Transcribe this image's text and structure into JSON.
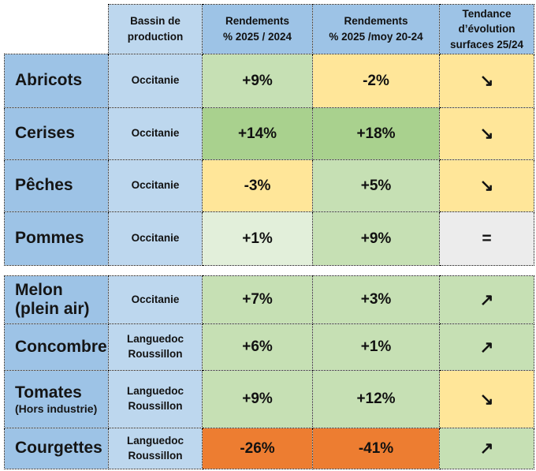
{
  "palette": {
    "col1_blue": "#9DC3E6",
    "col2_blue": "#BDD7EE",
    "header_blue": "#9DC3E6",
    "header_blue_light": "#BDD7EE",
    "green_pale": "#E2EFDA",
    "green_light": "#C6E0B4",
    "green_medium": "#A9D18E",
    "yellow": "#FFE699",
    "orange": "#ED7D31",
    "gray": "#ECECEC",
    "border": "#000000"
  },
  "header": {
    "labels": [
      "Bassin de\nproduction",
      "Rendements\n% 2025 / 2024",
      "Rendements\n% 2025 /moy 20-24",
      "Tendance\nd’évolution\nsurfaces 25/24"
    ]
  },
  "rows": [
    {
      "group": "fruits",
      "name": "Abricots",
      "sub": "",
      "bassin": "Occitanie",
      "y24": "+9%",
      "y24_bg": "green_light",
      "avg": "-2%",
      "avg_bg": "yellow",
      "trend": "↘︎",
      "trend_bg": "yellow"
    },
    {
      "group": "fruits",
      "name": "Cerises",
      "sub": "",
      "bassin": "Occitanie",
      "y24": "+14%",
      "y24_bg": "green_medium",
      "avg": "+18%",
      "avg_bg": "green_medium",
      "trend": "↘︎",
      "trend_bg": "yellow"
    },
    {
      "group": "fruits",
      "name": "Pêches",
      "sub": "",
      "bassin": "Occitanie",
      "y24": "-3%",
      "y24_bg": "yellow",
      "avg": "+5%",
      "avg_bg": "green_light",
      "trend": "↘︎",
      "trend_bg": "yellow"
    },
    {
      "group": "fruits",
      "name": "Pommes",
      "sub": "",
      "bassin": "Occitanie",
      "y24": "+1%",
      "y24_bg": "green_pale",
      "avg": "+9%",
      "avg_bg": "green_light",
      "trend": "=",
      "trend_bg": "gray"
    },
    {
      "group": "legumes",
      "name": "Melon\n(plein air)",
      "sub": "",
      "bassin": "Occitanie",
      "y24": "+7%",
      "y24_bg": "green_light",
      "avg": "+3%",
      "avg_bg": "green_light",
      "trend": "↗︎",
      "trend_bg": "green_light"
    },
    {
      "group": "legumes",
      "name": "Concombre",
      "sub": "",
      "bassin": "Languedoc\nRoussillon",
      "y24": "+6%",
      "y24_bg": "green_light",
      "avg": "+1%",
      "avg_bg": "green_light",
      "trend": "↗︎",
      "trend_bg": "green_light"
    },
    {
      "group": "legumes",
      "name": "Tomates",
      "sub": "(Hors industrie)",
      "bassin": "Languedoc\nRoussillon",
      "y24": "+9%",
      "y24_bg": "green_light",
      "avg": "+12%",
      "avg_bg": "green_light",
      "trend": "↘︎",
      "trend_bg": "yellow"
    },
    {
      "group": "legumes",
      "name": "Courgettes",
      "sub": "",
      "bassin": "Languedoc\nRoussillon",
      "y24": "-26%",
      "y24_bg": "orange",
      "avg": "-41%",
      "avg_bg": "orange",
      "trend": "↗︎",
      "trend_bg": "green_light"
    }
  ]
}
